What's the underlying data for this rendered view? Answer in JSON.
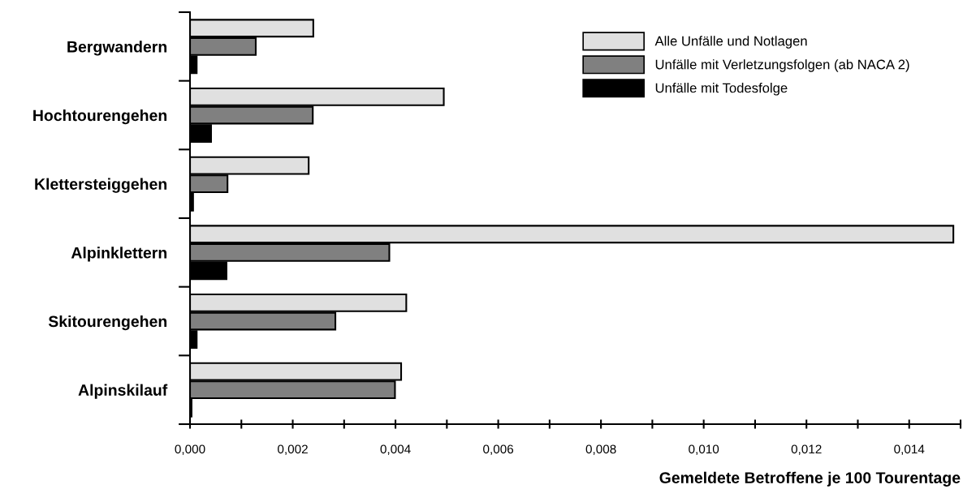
{
  "chart_data": {
    "type": "bar",
    "orientation": "horizontal",
    "categories": [
      "Bergwandern",
      "Hochtourengehen",
      "Klettersteiggehen",
      "Alpinklettern",
      "Skitourengehen",
      "Alpinskilauf"
    ],
    "series": [
      {
        "name": "Alle Unfälle und Notlagen",
        "color": "#e0e0e0",
        "values": [
          0.0024,
          0.00494,
          0.00231,
          0.01486,
          0.00421,
          0.00411
        ]
      },
      {
        "name": "Unfälle mit Verletzungsfolgen (ab NACA 2)",
        "color": "#808080",
        "values": [
          0.00128,
          0.00239,
          0.00073,
          0.00388,
          0.00283,
          0.00399
        ]
      },
      {
        "name": "Unfälle mit Todesfolge",
        "color": "#000000",
        "values": [
          0.00013,
          0.00041,
          6e-05,
          0.00071,
          0.00013,
          3e-05
        ]
      }
    ],
    "xlabel": "Gemeldete Betroffene je 100 Tourentage",
    "xlim": [
      0,
      0.015
    ],
    "xticks": [
      {
        "value": 0,
        "label": "0,000"
      },
      {
        "value": 0.001,
        "label": null
      },
      {
        "value": 0.002,
        "label": "0,002"
      },
      {
        "value": 0.003,
        "label": null
      },
      {
        "value": 0.004,
        "label": "0,004"
      },
      {
        "value": 0.005,
        "label": null
      },
      {
        "value": 0.006,
        "label": "0,006"
      },
      {
        "value": 0.007,
        "label": null
      },
      {
        "value": 0.008,
        "label": "0,008"
      },
      {
        "value": 0.009,
        "label": null
      },
      {
        "value": 0.01,
        "label": "0,010"
      },
      {
        "value": 0.011,
        "label": null
      },
      {
        "value": 0.012,
        "label": "0,012"
      },
      {
        "value": 0.013,
        "label": null
      },
      {
        "value": 0.014,
        "label": "0,014"
      },
      {
        "value": 0.015,
        "label": null
      }
    ],
    "grid": false,
    "legend": "top right"
  }
}
